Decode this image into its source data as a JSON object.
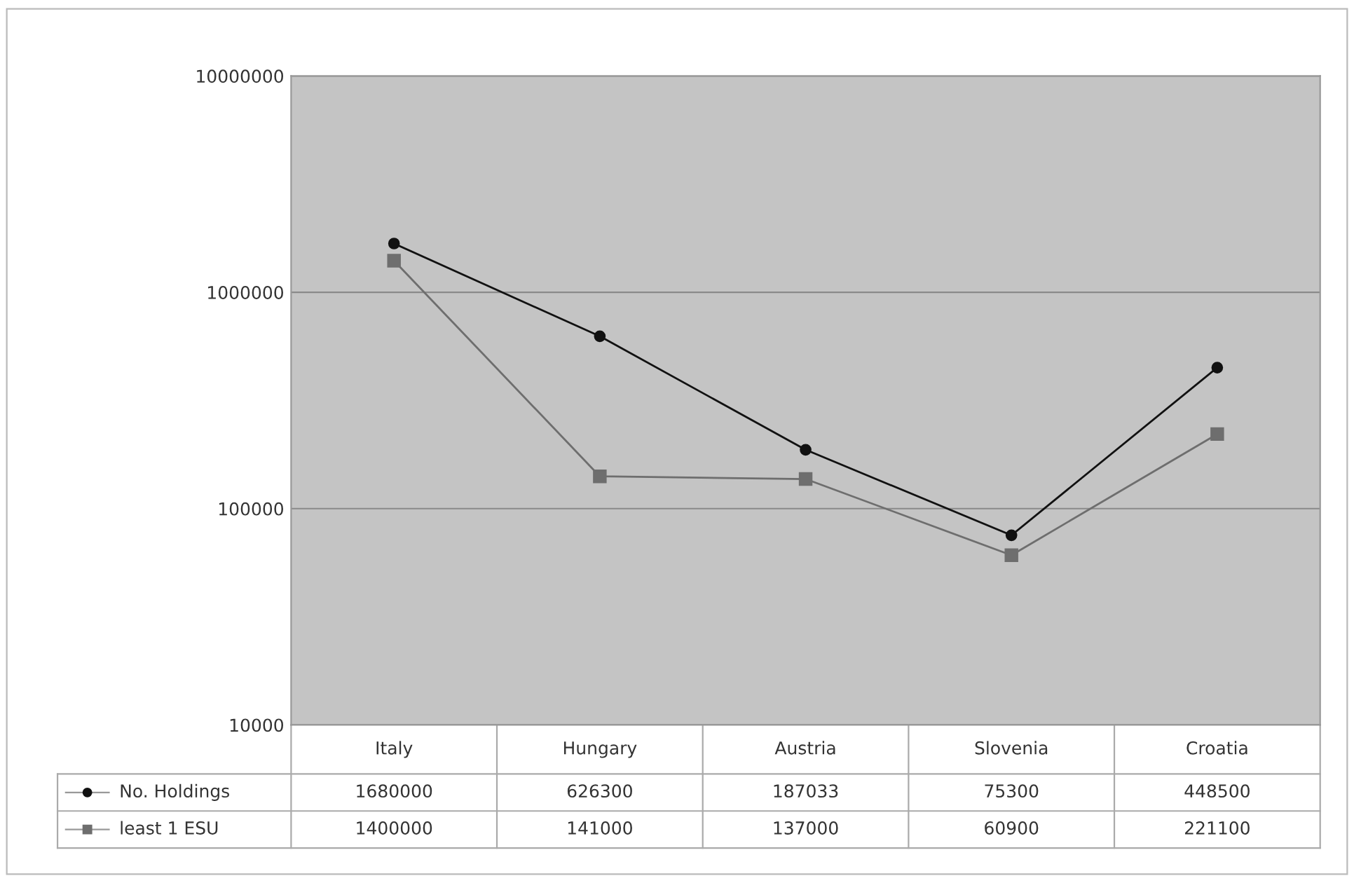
{
  "chart_data": {
    "type": "line",
    "categories": [
      "Italy",
      "Hungary",
      "Austria",
      "Slovenia",
      "Croatia"
    ],
    "series": [
      {
        "name": "No. Holdings",
        "color": "#111111",
        "marker": "circle",
        "values": [
          1680000,
          626300,
          187033,
          75300,
          448500
        ]
      },
      {
        "name": "least 1 ESU",
        "color": "#6e6e6e",
        "marker": "square",
        "values": [
          1400000,
          141000,
          137000,
          60900,
          221100
        ]
      }
    ],
    "log": true,
    "ylim": [
      10000,
      10000000
    ],
    "yticks": [
      10000,
      100000,
      1000000,
      10000000
    ],
    "grid": "y",
    "legend": "bottom",
    "data_labels": true
  }
}
